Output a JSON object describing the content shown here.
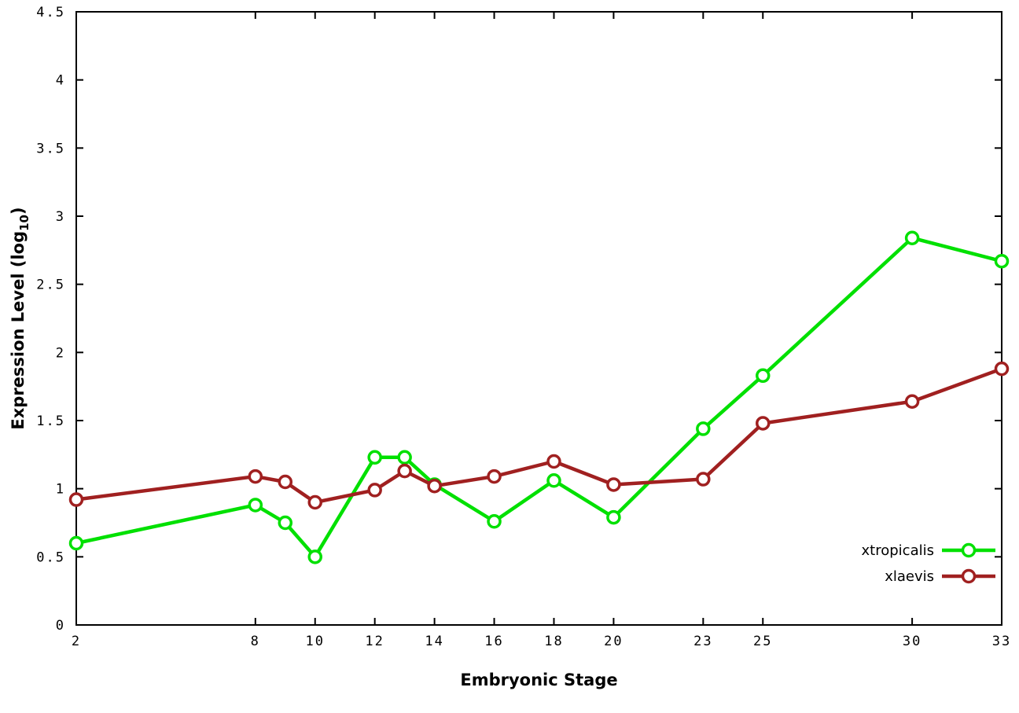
{
  "chart_data": {
    "type": "line",
    "title": "",
    "xlabel": "Embryonic Stage",
    "ylabel": "Expression Level (log10)",
    "ylabel_parts": {
      "base": "Expression Level (log",
      "sub": "10",
      "close": ")"
    },
    "xlim": [
      2,
      33
    ],
    "ylim": [
      0,
      4.5
    ],
    "x": [
      2,
      8,
      9,
      10,
      12,
      13,
      14,
      16,
      18,
      20,
      23,
      25,
      30,
      33
    ],
    "xtick_values": [
      2,
      8,
      10,
      12,
      14,
      16,
      18,
      20,
      23,
      25,
      30,
      33
    ],
    "xtick_labels": [
      "2",
      "8",
      "10",
      "12",
      "14",
      "16",
      "18",
      "20",
      "23",
      "25",
      "30",
      "33"
    ],
    "ytick_values": [
      0,
      0.5,
      1,
      1.5,
      2,
      2.5,
      3,
      3.5,
      4,
      4.5
    ],
    "ytick_labels": [
      "0",
      "0.5",
      "1",
      "1.5",
      "2",
      "2.5",
      "3",
      "3.5",
      "4",
      "4.5"
    ],
    "grid": false,
    "marker": "open-circle",
    "legend_position": "bottom-right",
    "axis_color": "#000000",
    "background_color": "#ffffff",
    "series": [
      {
        "name": "xtropicalis",
        "color": "#00e000",
        "values": [
          0.6,
          0.88,
          0.75,
          0.5,
          1.23,
          1.23,
          1.03,
          0.76,
          1.06,
          0.79,
          1.44,
          1.83,
          2.84,
          2.67
        ]
      },
      {
        "name": "xlaevis",
        "color": "#a02020",
        "values": [
          0.92,
          1.09,
          1.05,
          0.9,
          0.99,
          1.13,
          1.02,
          1.09,
          1.2,
          1.03,
          1.07,
          1.48,
          1.64,
          1.88
        ]
      }
    ]
  }
}
